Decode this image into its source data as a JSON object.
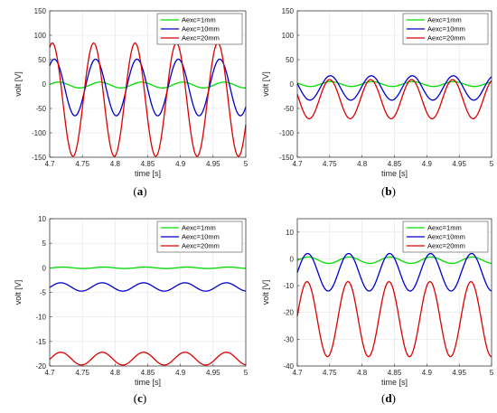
{
  "chart_data": [
    {
      "type": "line",
      "panel": "a",
      "caption": "(a)",
      "caption_open": "(",
      "caption_letter": "a",
      "caption_close": ")",
      "xlabel": "time [s]",
      "ylabel": "volt [V]",
      "xlim": [
        4.7,
        5.0
      ],
      "ylim": [
        -150,
        150
      ],
      "xticks": [
        "4.7",
        "4.75",
        "4.8",
        "4.85",
        "4.9",
        "4.95",
        "5"
      ],
      "yticks": [
        "-150",
        "-100",
        "-50",
        "0",
        "50",
        "100",
        "150"
      ],
      "grid": true,
      "legend_position": "top-right",
      "frequency_hz": 15.8,
      "series": [
        {
          "name": "Aexc=1mm",
          "color": "#00dd00",
          "mean": -2,
          "amplitude": 6,
          "phase_peak_t": 4.714
        },
        {
          "name": "Aexc=10mm",
          "color": "#0000cc",
          "mean": -7,
          "amplitude": 58,
          "phase_peak_t": 4.707
        },
        {
          "name": "Aexc=20mm",
          "color": "#dd0000",
          "mean": -32,
          "amplitude": 116,
          "phase_peak_t": 4.704
        }
      ]
    },
    {
      "type": "line",
      "panel": "b",
      "caption": "(b)",
      "caption_open": "(",
      "caption_letter": "b",
      "caption_close": ")",
      "xlabel": "time [s]",
      "ylabel": "volt [V]",
      "xlim": [
        4.7,
        5.0
      ],
      "ylim": [
        -150,
        150
      ],
      "xticks": [
        "4.7",
        "4.75",
        "4.8",
        "4.85",
        "4.9",
        "4.95",
        "5"
      ],
      "yticks": [
        "-150",
        "-100",
        "-50",
        "0",
        "50",
        "100",
        "150"
      ],
      "grid": true,
      "legend_position": "top-right",
      "frequency_hz": 15.8,
      "series": [
        {
          "name": "Aexc=1mm",
          "color": "#00dd00",
          "mean": 0,
          "amplitude": 5,
          "phase_peak_t": 4.752
        },
        {
          "name": "Aexc=10mm",
          "color": "#0000cc",
          "mean": -8,
          "amplitude": 25,
          "phase_peak_t": 4.751
        },
        {
          "name": "Aexc=20mm",
          "color": "#dd0000",
          "mean": -31,
          "amplitude": 40,
          "phase_peak_t": 4.75
        }
      ]
    },
    {
      "type": "line",
      "panel": "c",
      "caption": "(c)",
      "caption_open": "(",
      "caption_letter": "c",
      "caption_close": ")",
      "xlabel": "time [s]",
      "ylabel": "volt [V]",
      "xlim": [
        4.7,
        5.0
      ],
      "ylim": [
        -20,
        10
      ],
      "xticks": [
        "4.7",
        "4.75",
        "4.8",
        "4.85",
        "4.9",
        "4.95",
        "5"
      ],
      "yticks": [
        "-20",
        "-15",
        "-10",
        "-5",
        "0",
        "5",
        "10"
      ],
      "grid": true,
      "legend_position": "top-right",
      "frequency_hz": 15.8,
      "series": [
        {
          "name": "Aexc=1mm",
          "color": "#00dd00",
          "mean": 0,
          "amplitude": 0.15,
          "phase_peak_t": 4.72
        },
        {
          "name": "Aexc=10mm",
          "color": "#0000cc",
          "mean": -3.9,
          "amplitude": 0.85,
          "phase_peak_t": 4.717
        },
        {
          "name": "Aexc=20mm",
          "color": "#dd0000",
          "mean": -18.5,
          "amplitude": 1.3,
          "phase_peak_t": 4.717
        }
      ]
    },
    {
      "type": "line",
      "panel": "d",
      "caption": "(d)",
      "caption_open": "(",
      "caption_letter": "d",
      "caption_close": ")",
      "xlabel": "time [s]",
      "ylabel": "volt [V]",
      "xlim": [
        4.7,
        5.0
      ],
      "ylim": [
        -40,
        15
      ],
      "xticks": [
        "4.7",
        "4.75",
        "4.8",
        "4.85",
        "4.9",
        "4.95",
        "5"
      ],
      "yticks": [
        "-40",
        "-30",
        "-20",
        "-10",
        "0",
        "10"
      ],
      "grid": true,
      "legend_position": "top-right",
      "frequency_hz": 15.8,
      "series": [
        {
          "name": "Aexc=1mm",
          "color": "#00dd00",
          "mean": -0.5,
          "amplitude": 1.2,
          "phase_peak_t": 4.717
        },
        {
          "name": "Aexc=10mm",
          "color": "#0000cc",
          "mean": -5,
          "amplitude": 7,
          "phase_peak_t": 4.716
        },
        {
          "name": "Aexc=20mm",
          "color": "#dd0000",
          "mean": -22.5,
          "amplitude": 14,
          "phase_peak_t": 4.715
        }
      ]
    }
  ]
}
